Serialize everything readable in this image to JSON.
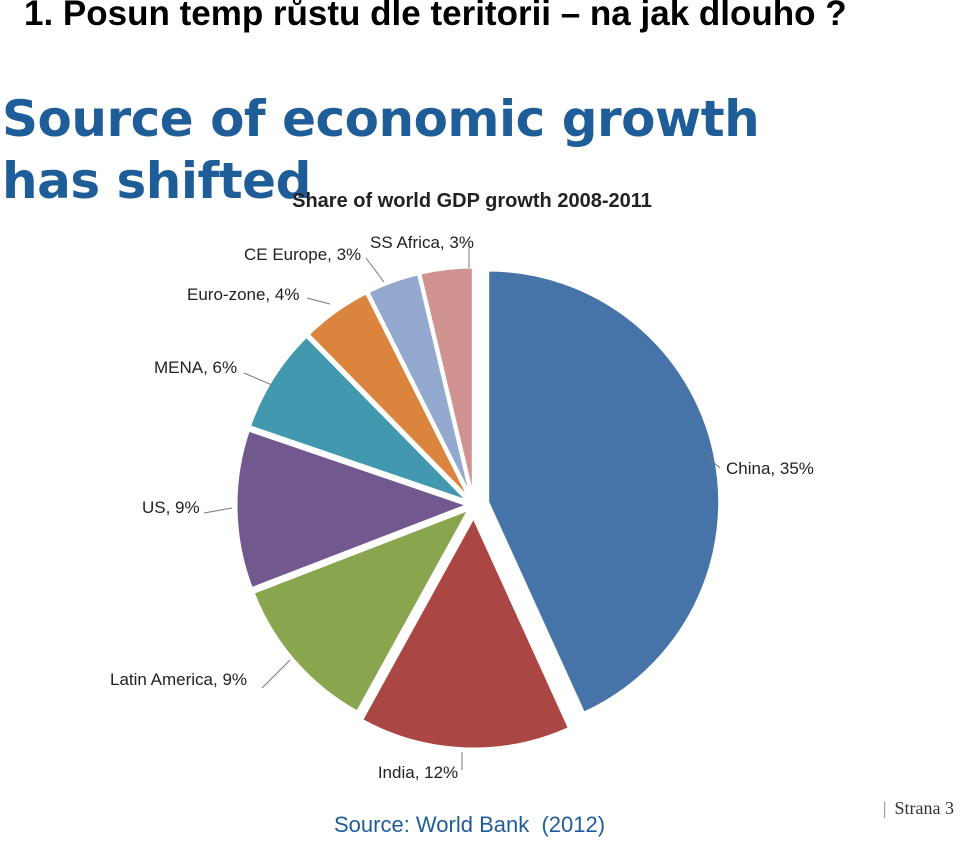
{
  "slide": {
    "title": "1. Posun temp růstu dle teritorii – na jak dlouho ?",
    "headline": "Source of economic growth has shifted",
    "source": "Source: World Bank  (2012)",
    "page_label": "Strana 3"
  },
  "chart_data": {
    "type": "pie",
    "title": "Share of world GDP growth 2008-2011",
    "unit": "%",
    "slices": [
      {
        "label": "China, 35%",
        "name": "China",
        "value": 35,
        "color": "#4674a8"
      },
      {
        "label": "India, 12%",
        "name": "India",
        "value": 12,
        "color": "#aa4744"
      },
      {
        "label": "Latin America, 9%",
        "name": "Latin America",
        "value": 9,
        "color": "#89a54e"
      },
      {
        "label": "US, 9%",
        "name": "US",
        "value": 9,
        "color": "#71588f"
      },
      {
        "label": "MENA, 6%",
        "name": "MENA",
        "value": 6,
        "color": "#4198af"
      },
      {
        "label": "Euro-zone, 4%",
        "name": "Euro-zone",
        "value": 4,
        "color": "#db843d"
      },
      {
        "label": "CE Europe, 3%",
        "name": "CE Europe",
        "value": 3,
        "color": "#93a9d0"
      },
      {
        "label": "SS Africa, 3%",
        "name": "SS Africa",
        "value": 3,
        "color": "#d09392"
      }
    ]
  }
}
